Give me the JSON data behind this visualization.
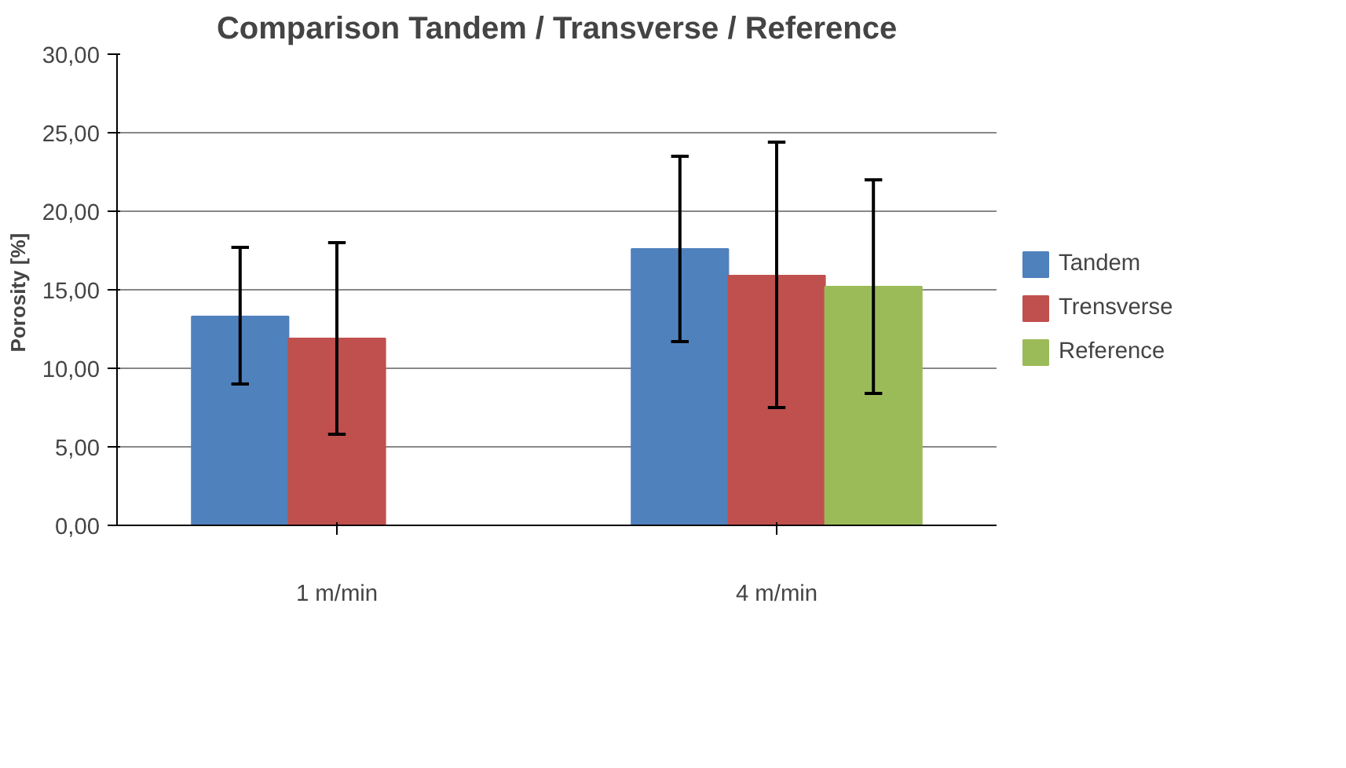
{
  "chart_data": {
    "type": "bar",
    "title": "Comparison Tandem / Transverse / Reference",
    "ylabel": "Porosity  [%]",
    "categories": [
      "1 m/min",
      "4 m/min"
    ],
    "series": [
      {
        "name": "Tandem",
        "color": "#4f81bd",
        "values": [
          13.3,
          17.6
        ],
        "errors": [
          [
            9.0,
            17.7
          ],
          [
            11.7,
            23.5
          ]
        ]
      },
      {
        "name": "Trensverse",
        "color": "#c0504d",
        "values": [
          11.9,
          15.9
        ],
        "errors": [
          [
            5.8,
            18.0
          ],
          [
            7.5,
            24.4
          ]
        ]
      },
      {
        "name": "Reference",
        "color": "#9bbb59",
        "values": [
          null,
          15.2
        ],
        "errors": [
          null,
          [
            8.4,
            22.0
          ]
        ]
      }
    ],
    "ylim": [
      0,
      30
    ],
    "yticks": [
      {
        "value": 0,
        "label": "0,00"
      },
      {
        "value": 5,
        "label": "5,00"
      },
      {
        "value": 10,
        "label": "10,00"
      },
      {
        "value": 15,
        "label": "15,00"
      },
      {
        "value": 20,
        "label": "20,00"
      },
      {
        "value": 25,
        "label": "25,00"
      },
      {
        "value": 30,
        "label": "30,00"
      }
    ],
    "grid": "y",
    "legend": "right"
  }
}
